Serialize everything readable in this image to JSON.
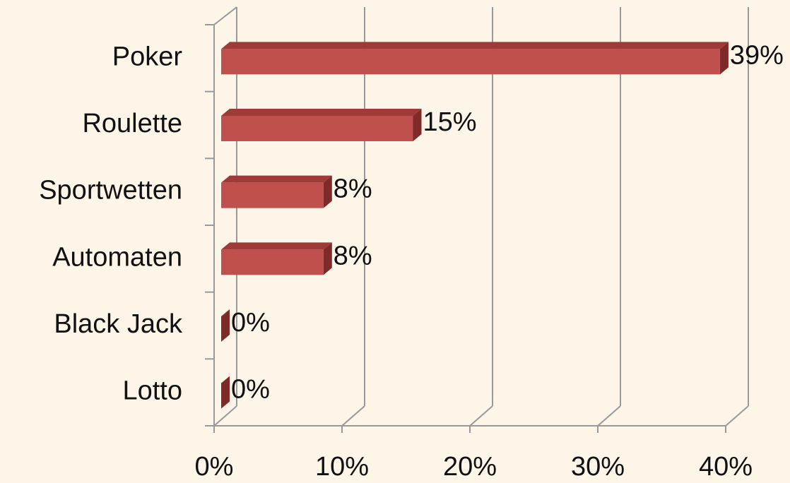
{
  "chart_data": {
    "type": "bar",
    "orientation": "horizontal",
    "categories": [
      "Poker",
      "Roulette",
      "Sportwetten",
      "Automaten",
      "Black Jack",
      "Lotto"
    ],
    "values": [
      39,
      15,
      8,
      8,
      0,
      0
    ],
    "value_labels": [
      "39%",
      "15%",
      "8%",
      "8%",
      "0%",
      "0%"
    ],
    "color": "#c0504d",
    "xlim": [
      0,
      40
    ],
    "xticks": [
      {
        "value": 0,
        "label": "0%"
      },
      {
        "value": 10,
        "label": "10%"
      },
      {
        "value": 20,
        "label": "20%"
      },
      {
        "value": 30,
        "label": "30%"
      },
      {
        "value": 40,
        "label": "40%"
      }
    ],
    "grid": true
  }
}
